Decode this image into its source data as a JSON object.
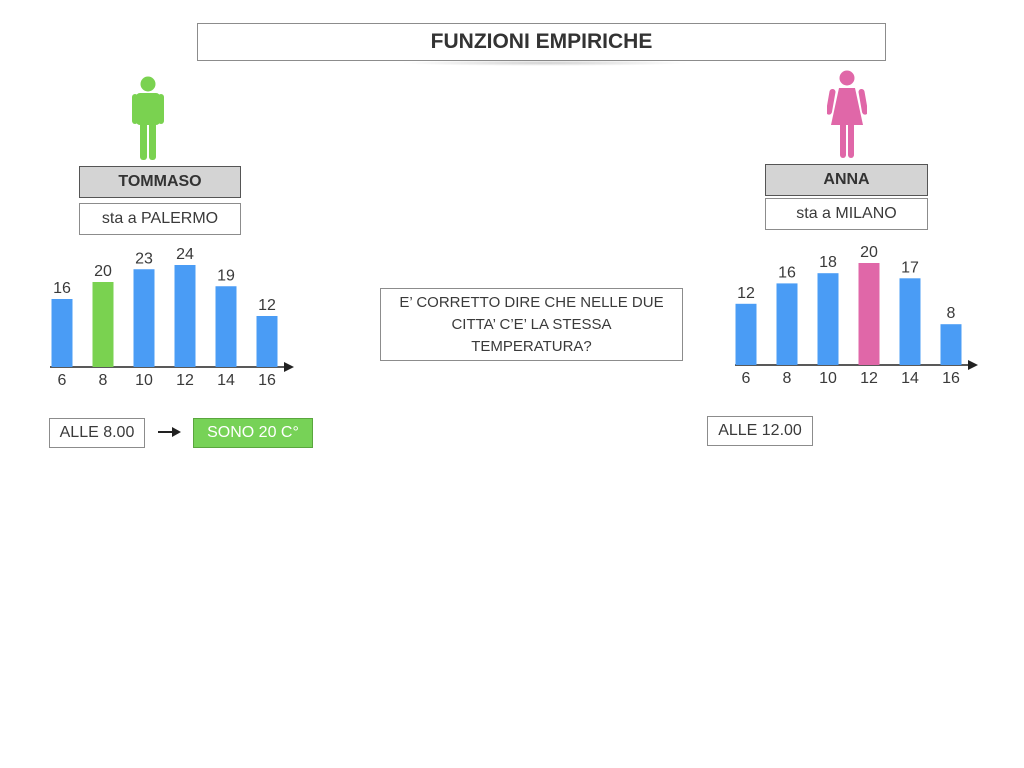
{
  "title": "FUNZIONI EMPIRICHE",
  "left": {
    "name": "TOMMASO",
    "city": "sta a PALERMO",
    "time": "ALLE 8.00",
    "result": "SONO 20 C°"
  },
  "right": {
    "name": "ANNA",
    "city": "sta a MILANO",
    "time": "ALLE 12.00"
  },
  "question": "E’ CORRETTO DIRE CHE NELLE DUE CITTA’ C’E’ LA STESSA TEMPERATURA?",
  "colors": {
    "bar": "#4a9cf5",
    "highlight_left": "#7ad250",
    "highlight_right": "#e067a8",
    "male_icon": "#7ad250",
    "female_icon": "#e067a8"
  },
  "icons": {
    "left": "man-icon",
    "right": "woman-icon",
    "arrow": "right-arrow-icon"
  },
  "chart_data": [
    {
      "type": "bar",
      "categories": [
        "6",
        "8",
        "10",
        "12",
        "14",
        "16"
      ],
      "values": [
        16,
        20,
        23,
        24,
        19,
        12
      ],
      "highlight_index": 1,
      "ylim": [
        0,
        24
      ]
    },
    {
      "type": "bar",
      "categories": [
        "6",
        "8",
        "10",
        "12",
        "14",
        "16"
      ],
      "values": [
        12,
        16,
        18,
        20,
        17,
        8
      ],
      "highlight_index": 3,
      "ylim": [
        0,
        20
      ]
    }
  ]
}
